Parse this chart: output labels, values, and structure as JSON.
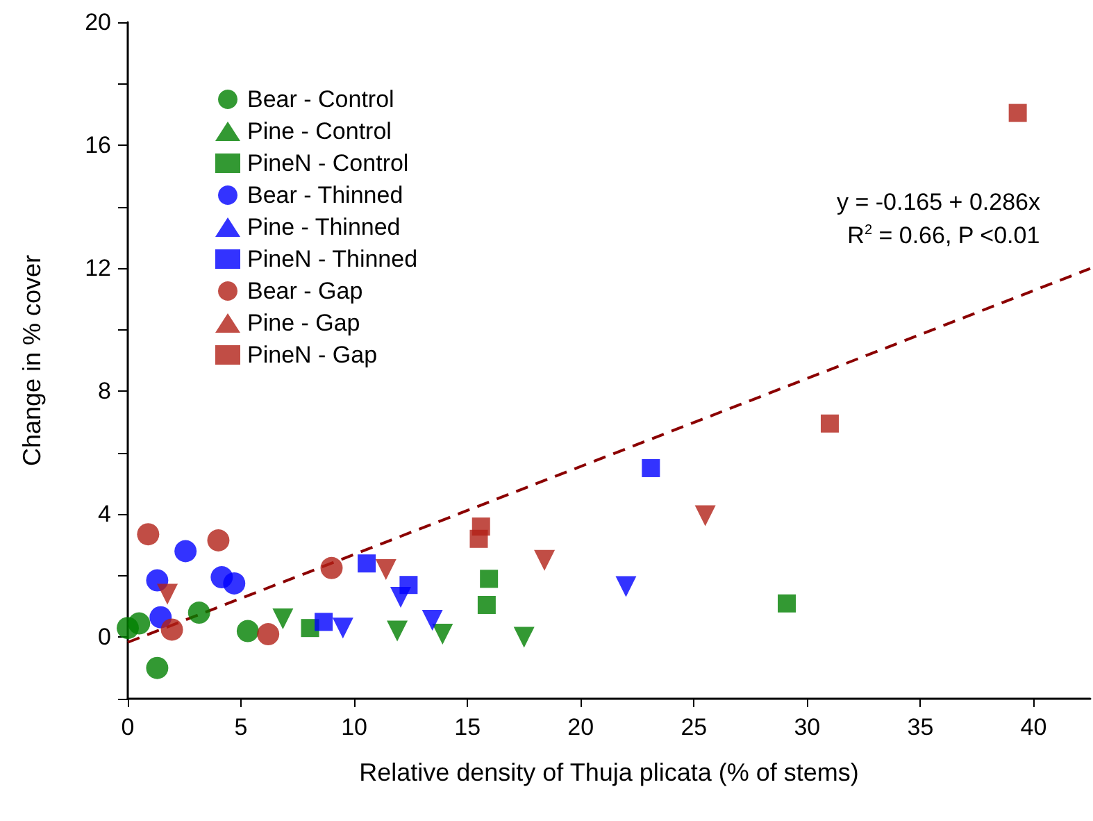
{
  "chart_data": {
    "type": "scatter",
    "xlabel": "Relative density of Thuja plicata (% of stems)",
    "ylabel": "Change in % cover",
    "xlim": [
      0,
      42.5
    ],
    "xticks": [
      0,
      5,
      10,
      15,
      20,
      25,
      30,
      35,
      40
    ],
    "ylim": [
      -2,
      20
    ],
    "yticks": [
      {
        "value": -2,
        "label": null
      },
      0,
      {
        "value": 2,
        "label": null
      },
      4,
      {
        "value": 6,
        "label": null
      },
      8,
      {
        "value": 10,
        "label": null
      },
      12,
      {
        "value": 14,
        "label": null
      },
      16,
      {
        "value": 18,
        "label": null
      },
      20
    ],
    "grid": false,
    "legend": "top left",
    "annotations": [
      "y = -0.165 + 0.286x",
      "R$^{2}$ = 0.66, P <0.01"
    ],
    "series": [
      {
        "name": "Bear - Control",
        "color": "#008000",
        "marker": "circle",
        "x": [
          0.0,
          0.5,
          3.15,
          5.3,
          1.3
        ],
        "values": [
          0.3,
          0.45,
          0.8,
          0.2,
          -1.0
        ]
      },
      {
        "name": "Pine - Control",
        "color": "#008000",
        "marker": "triangle",
        "x": [
          6.85,
          11.9,
          13.9,
          17.5
        ],
        "values": [
          0.6,
          0.2,
          0.1,
          0.0
        ]
      },
      {
        "name": "PineN - Control",
        "color": "#008000",
        "marker": "square",
        "x": [
          8.05,
          15.95,
          15.85,
          29.1
        ],
        "values": [
          0.3,
          1.9,
          1.05,
          1.1
        ]
      },
      {
        "name": "Bear - Thinned",
        "color": "#0000ff",
        "marker": "circle",
        "x": [
          1.3,
          2.55,
          1.45,
          4.15,
          4.7
        ],
        "values": [
          1.85,
          2.8,
          0.65,
          1.95,
          1.75
        ]
      },
      {
        "name": "Pine - Thinned",
        "color": "#0000ff",
        "marker": "triangle",
        "x": [
          9.5,
          12.05,
          13.45,
          22.0
        ],
        "values": [
          0.3,
          1.3,
          0.55,
          1.65
        ]
      },
      {
        "name": "PineN - Thinned",
        "color": "#0000ff",
        "marker": "square",
        "x": [
          8.65,
          10.55,
          12.4,
          23.1
        ],
        "values": [
          0.5,
          2.4,
          1.7,
          5.5
        ]
      },
      {
        "name": "Bear - Gap",
        "color": "#b22016",
        "marker": "circle",
        "x": [
          0.9,
          4.0,
          1.95,
          6.2,
          9.0
        ],
        "values": [
          3.35,
          3.15,
          0.25,
          0.1,
          2.25
        ]
      },
      {
        "name": "Pine - Gap",
        "color": "#b22016",
        "marker": "triangle",
        "x": [
          1.75,
          11.4,
          18.4,
          25.5
        ],
        "values": [
          1.4,
          2.2,
          2.5,
          3.95
        ]
      },
      {
        "name": "PineN - Gap",
        "color": "#b22016",
        "marker": "square",
        "x": [
          15.6,
          15.5,
          31.0,
          39.3
        ],
        "values": [
          3.6,
          3.2,
          6.95,
          17.05
        ]
      },
      {
        "type": "line",
        "color": "#8b0000",
        "line_style": "dashed",
        "marker": "none",
        "x": [
          0,
          42.5
        ],
        "values": [
          -0.165,
          11.99
        ]
      }
    ]
  }
}
